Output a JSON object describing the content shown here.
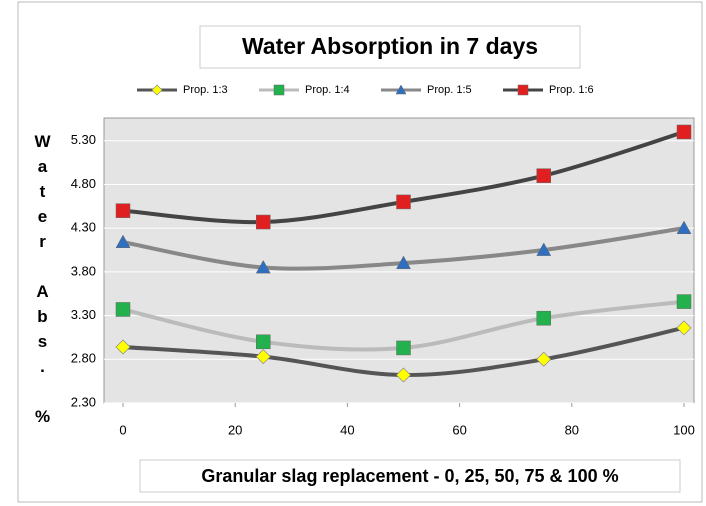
{
  "chart_data": {
    "type": "line",
    "title": "Water Absorption in 7 days",
    "x_label": "Granular slag replacement - 0, 25, 50, 75 & 100 %",
    "y_label": "Water Abs. %",
    "x": [
      0,
      25,
      50,
      75,
      100
    ],
    "xlim": [
      0,
      100
    ],
    "xticks": [
      0,
      20,
      40,
      60,
      80,
      100
    ],
    "ylim": [
      2.3,
      5.56
    ],
    "yticks": [
      {
        "value": 2.3,
        "label": "2.30"
      },
      {
        "value": 2.8,
        "label": "2.80"
      },
      {
        "value": 3.3,
        "label": "3.30"
      },
      {
        "value": 3.8,
        "label": "3.80"
      },
      {
        "value": 4.3,
        "label": "4.30"
      },
      {
        "value": 4.8,
        "label": "4.80"
      },
      {
        "value": 5.3,
        "label": "5.30"
      }
    ],
    "grid": true,
    "legend": "top",
    "series": [
      {
        "name": "Prop. 1:3",
        "color": "#555555",
        "marker": "diamond",
        "marker_color": "#ffff00",
        "values": [
          2.94,
          2.83,
          2.62,
          2.8,
          3.16
        ]
      },
      {
        "name": "Prop. 1:4",
        "color": "#bbbbbb",
        "marker": "square",
        "marker_color": "#22b14c",
        "values": [
          3.37,
          3.0,
          2.93,
          3.27,
          3.46
        ]
      },
      {
        "name": "Prop. 1:5",
        "color": "#888888",
        "marker": "triangle",
        "marker_color": "#2e6fc0",
        "values": [
          4.14,
          3.85,
          3.9,
          4.05,
          4.3
        ]
      },
      {
        "name": "Prop. 1:6",
        "color": "#444444",
        "marker": "square",
        "marker_color": "#e02020",
        "values": [
          4.5,
          4.37,
          4.6,
          4.9,
          5.4
        ]
      }
    ]
  }
}
